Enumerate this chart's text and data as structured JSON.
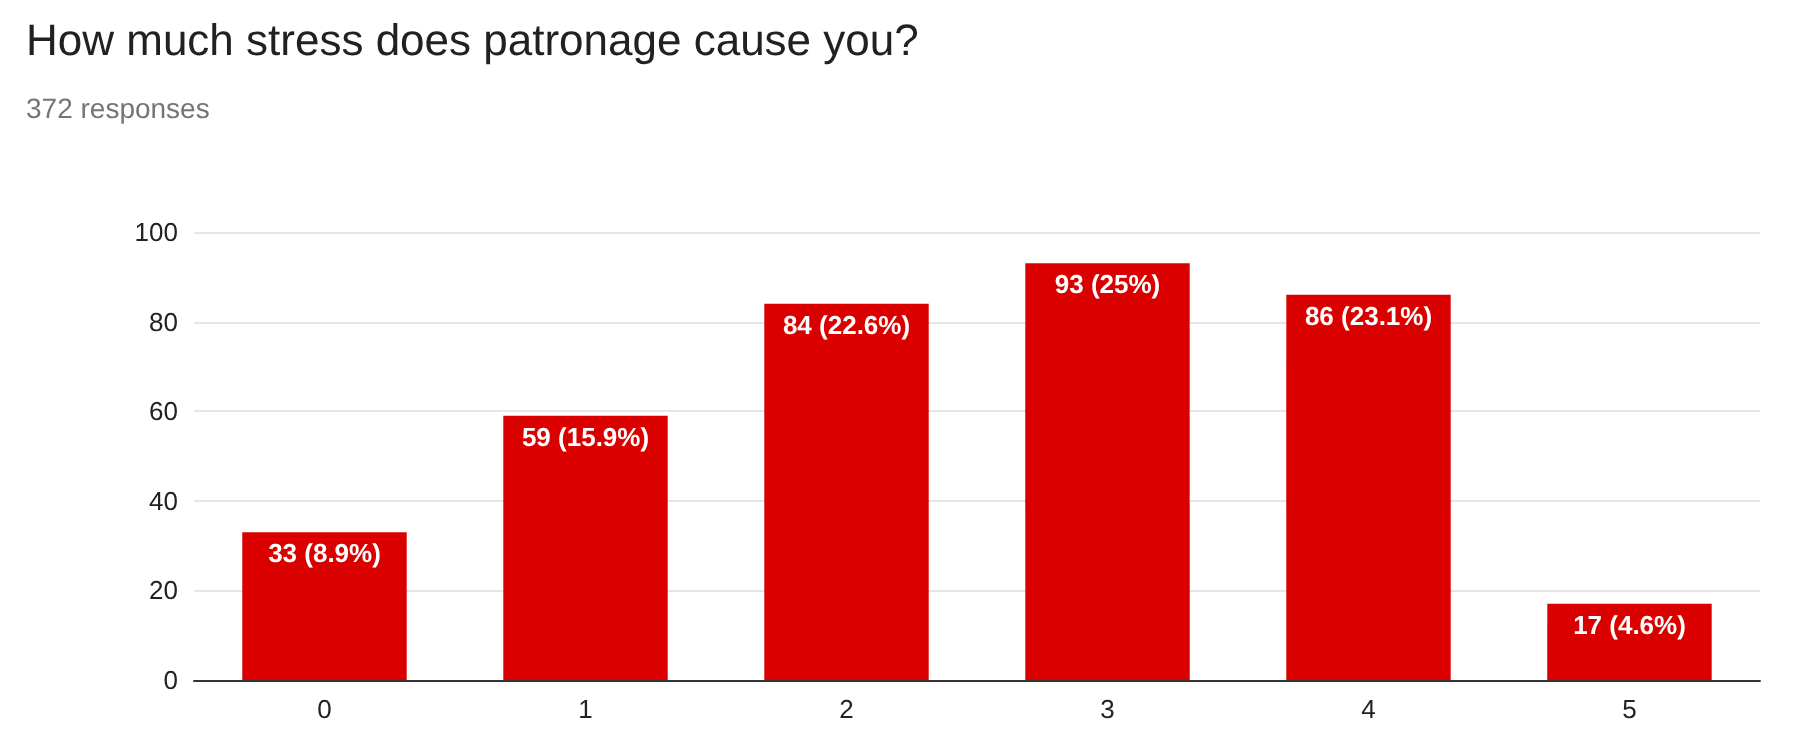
{
  "chart_data": {
    "type": "bar",
    "title": "How much stress does patronage cause you?",
    "subtitle": "372 responses",
    "categories": [
      "0",
      "1",
      "2",
      "3",
      "4",
      "5"
    ],
    "values": [
      33,
      59,
      84,
      93,
      86,
      17
    ],
    "value_labels": [
      "33 (8.9%)",
      "59 (15.9%)",
      "84 (22.6%)",
      "93 (25%)",
      "86 (23.1%)",
      "17 (4.6%)"
    ],
    "color": "#db0000",
    "ylim": [
      0,
      100
    ],
    "yticks": [
      0,
      20,
      40,
      60,
      80,
      100
    ],
    "grid": "y"
  }
}
